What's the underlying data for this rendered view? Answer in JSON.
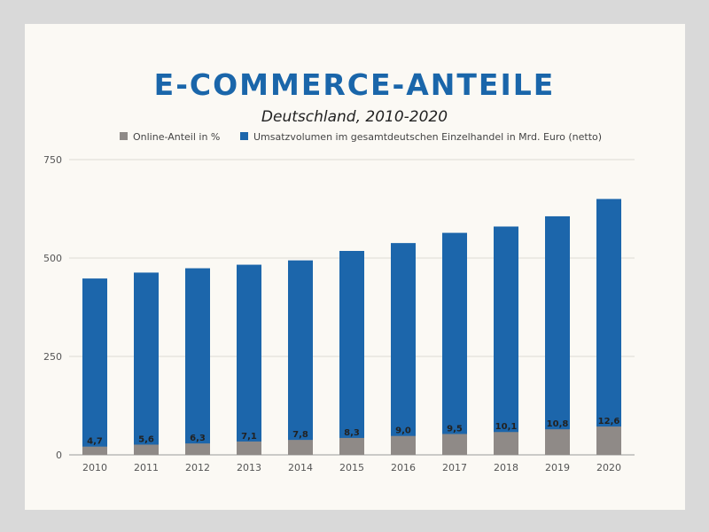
{
  "chart_data": {
    "type": "bar",
    "stacked": true,
    "title": "E-COMMERCE-ANTEILE",
    "subtitle": "Deutschland, 2010-2020",
    "categories": [
      "2010",
      "2011",
      "2012",
      "2013",
      "2014",
      "2015",
      "2016",
      "2017",
      "2018",
      "2019",
      "2020"
    ],
    "series": [
      {
        "name": "Online-Anteil in %",
        "color": "#8f8a87",
        "values": [
          21,
          26,
          29,
          34,
          38,
          43,
          48,
          53,
          58,
          65,
          72
        ],
        "data_labels": [
          "4,7",
          "5,6",
          "6,3",
          "7,1",
          "7,8",
          "8,3",
          "9,0",
          "9,5",
          "10,1",
          "10,8",
          "12,6"
        ]
      },
      {
        "name": "Umsatzvolumen im gesamtdeutschen Einzelhandel in Mrd. Euro (netto)",
        "color": "#1c66ab",
        "values": [
          448,
          463,
          474,
          483,
          494,
          518,
          538,
          564,
          580,
          606,
          650
        ]
      }
    ],
    "yticks": [
      "0",
      "250",
      "500",
      "750"
    ],
    "ylim": [
      0,
      750
    ],
    "grid": true,
    "legend_position": "top"
  }
}
